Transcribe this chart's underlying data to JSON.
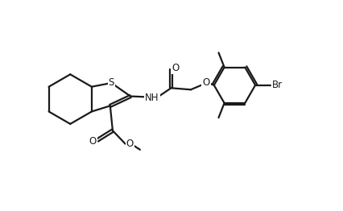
{
  "background": "#ffffff",
  "line_color": "#1a1a1a",
  "line_width": 1.6,
  "font_size": 8.5,
  "fig_width": 4.27,
  "fig_height": 2.62,
  "dpi": 100,
  "xlim": [
    0,
    10.5
  ],
  "ylim": [
    0,
    6.5
  ]
}
